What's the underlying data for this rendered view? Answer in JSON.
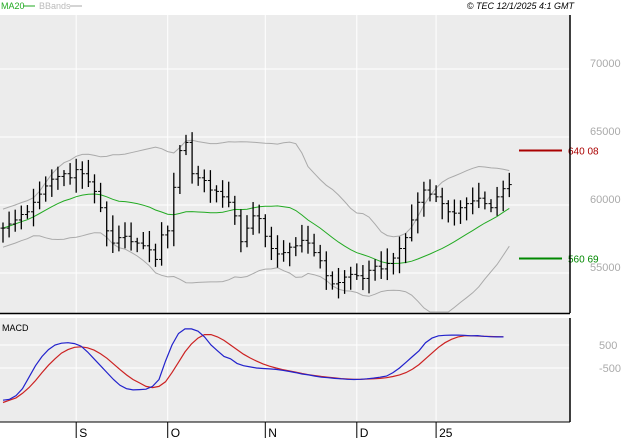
{
  "legend": {
    "ma_label": "MA20",
    "bb_label": "BBands"
  },
  "copyright": "© TEC 12/1/2025 4:1 GMT",
  "macd_label": "MACD",
  "colors": {
    "panel_bg": "#ececec",
    "grid": "#ffffff",
    "price": "#000000",
    "ma20": "#22aa22",
    "bbands": "#aaaaaa",
    "macd": "#2222cc",
    "signal": "#cc2222",
    "upper_level": "#aa0000",
    "lower_level": "#008800",
    "axis_text": "#aaaaaa"
  },
  "chart_data": [
    {
      "type": "ohlc",
      "y_ticks": [
        {
          "value": 70000,
          "label": "70000"
        },
        {
          "value": 65000,
          "label": "65000"
        },
        {
          "value": 60000,
          "label": "60000"
        },
        {
          "value": 55000,
          "label": "55000"
        }
      ],
      "x_ticks": [
        {
          "index": 12,
          "label": "S"
        },
        {
          "index": 27,
          "label": "O"
        },
        {
          "index": 43,
          "label": "N"
        },
        {
          "index": 58,
          "label": "D"
        },
        {
          "index": 71,
          "label": "25"
        }
      ],
      "levels": [
        {
          "value": 64008,
          "label": "640 08",
          "kind": "resistance"
        },
        {
          "value": 56069,
          "label": "560 69",
          "kind": "support"
        }
      ],
      "close": [
        58300,
        58600,
        58900,
        59300,
        59500,
        60200,
        60800,
        61400,
        61900,
        62100,
        62300,
        62000,
        62600,
        62300,
        61700,
        61000,
        59800,
        58100,
        57200,
        57600,
        57700,
        57300,
        57200,
        57000,
        56700,
        56000,
        57800,
        58100,
        61300,
        64000,
        64600,
        62300,
        62000,
        61800,
        61100,
        61000,
        60600,
        60200,
        59200,
        57300,
        58300,
        59200,
        59000,
        57700,
        56800,
        56400,
        56500,
        56900,
        57000,
        57400,
        57200,
        56500,
        55900,
        54800,
        54200,
        54300,
        54700,
        54900,
        54800,
        54600,
        55200,
        55500,
        55300,
        55700,
        56100,
        56800,
        57600,
        58900,
        60200,
        61100,
        60800,
        60600,
        60100,
        59500,
        59400,
        59800,
        60100,
        60300,
        60500,
        60100,
        59800,
        60600,
        61200,
        61500
      ]
    },
    {
      "type": "line",
      "title": "MACD",
      "y_ticks": [
        {
          "value": 500,
          "label": "500"
        },
        {
          "value": -500,
          "label": "-500"
        }
      ],
      "series": [
        {
          "name": "MACD",
          "values": [
            -1900,
            -1860,
            -1700,
            -1400,
            -900,
            -400,
            0,
            300,
            500,
            580,
            600,
            560,
            450,
            200,
            -100,
            -400,
            -700,
            -1000,
            -1250,
            -1400,
            -1450,
            -1440,
            -1420,
            -1300,
            -1000,
            -200,
            500,
            1000,
            1200,
            1200,
            1100,
            850,
            500,
            250,
            0,
            -100,
            -300,
            -400,
            -450,
            -500,
            -520,
            -540,
            -560,
            -600,
            -650,
            -700,
            -760,
            -800,
            -850,
            -900,
            -920,
            -950,
            -970,
            -990,
            -1000,
            -990,
            -970,
            -940,
            -900,
            -850,
            -700,
            -500,
            -250,
            0,
            250,
            600,
            800,
            900,
            920,
            930,
            930,
            920,
            900,
            910,
            880,
            860,
            850,
            850
          ]
        },
        {
          "name": "Signal",
          "values": [
            -2000,
            -1900,
            -1800,
            -1600,
            -1350,
            -1050,
            -700,
            -380,
            -100,
            150,
            300,
            400,
            420,
            380,
            280,
            120,
            -80,
            -320,
            -570,
            -800,
            -1000,
            -1150,
            -1300,
            -1350,
            -1300,
            -1100,
            -700,
            -250,
            200,
            550,
            800,
            950,
            950,
            850,
            700,
            500,
            300,
            100,
            -60,
            -200,
            -320,
            -420,
            -500,
            -570,
            -620,
            -680,
            -740,
            -790,
            -830,
            -870,
            -900,
            -930,
            -960,
            -980,
            -990,
            -990,
            -980,
            -970,
            -950,
            -920,
            -870,
            -800,
            -700,
            -550,
            -350,
            -100,
            150,
            400,
            600,
            750,
            850,
            900,
            900,
            890,
            880,
            870,
            860,
            850
          ]
        }
      ]
    }
  ]
}
